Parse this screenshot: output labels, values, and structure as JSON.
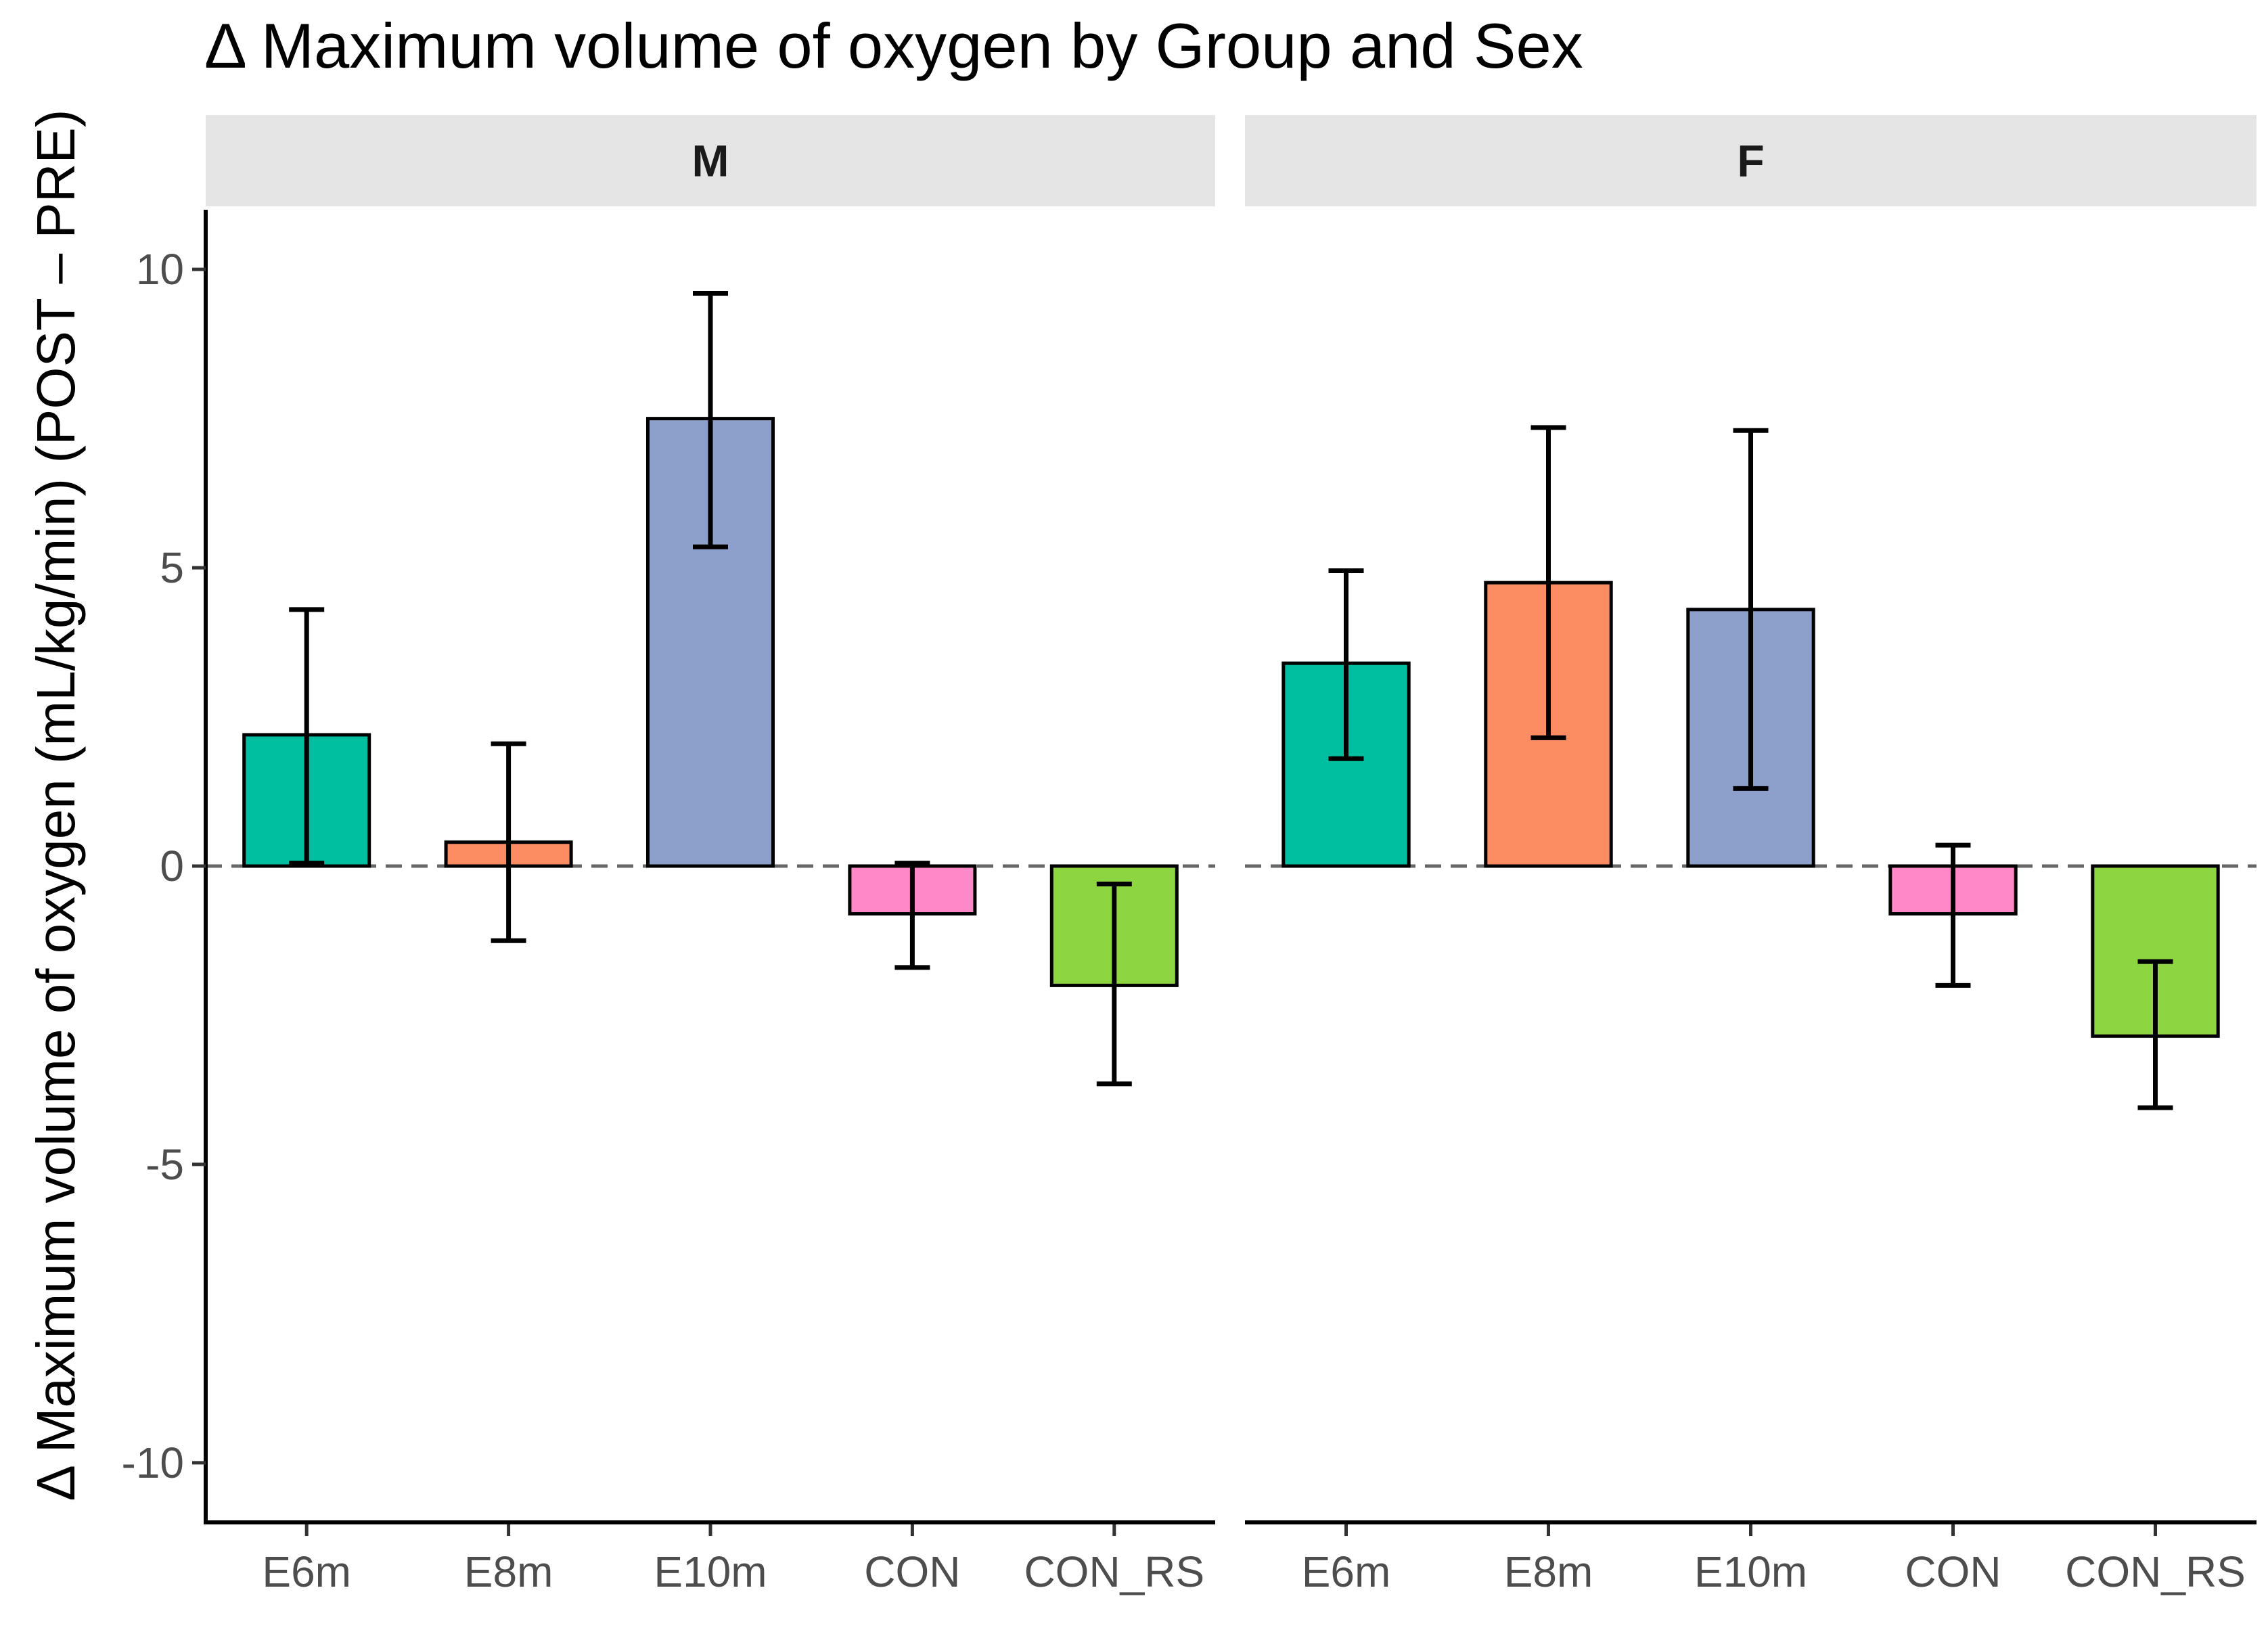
{
  "chart_data": {
    "type": "bar",
    "title": "Δ Maximum volume of oxygen by Group and Sex",
    "xlabel": "",
    "ylabel": "Δ Maximum volume of oxygen (mL/kg/min) (POST – PRE)",
    "ylim": [
      -11,
      11
    ],
    "yticks": [
      -10,
      -5,
      0,
      5,
      10
    ],
    "ytick_labels": [
      "-10",
      "-5",
      "0",
      "5",
      "10"
    ],
    "reference_line": 0,
    "categories": [
      "E6m",
      "E8m",
      "E10m",
      "CON",
      "CON_RS"
    ],
    "colors": {
      "E6m": "#00BFA0",
      "E8m": "#FC8D62",
      "E10m": "#8DA0CB",
      "CON": "#FF88C8",
      "CON_RS": "#8ED641"
    },
    "facets": [
      {
        "label": "M",
        "values": [
          2.2,
          0.4,
          7.5,
          -0.8,
          -2.0
        ],
        "err_low": [
          0.05,
          -1.25,
          5.35,
          -1.7,
          -3.65
        ],
        "err_high": [
          4.3,
          2.05,
          9.6,
          0.05,
          -0.3
        ]
      },
      {
        "label": "F",
        "values": [
          3.4,
          4.75,
          4.3,
          -0.8,
          -2.85
        ],
        "err_low": [
          1.8,
          2.15,
          1.3,
          -2.0,
          -4.05
        ],
        "err_high": [
          4.95,
          7.35,
          7.3,
          0.35,
          -1.6
        ]
      }
    ]
  }
}
